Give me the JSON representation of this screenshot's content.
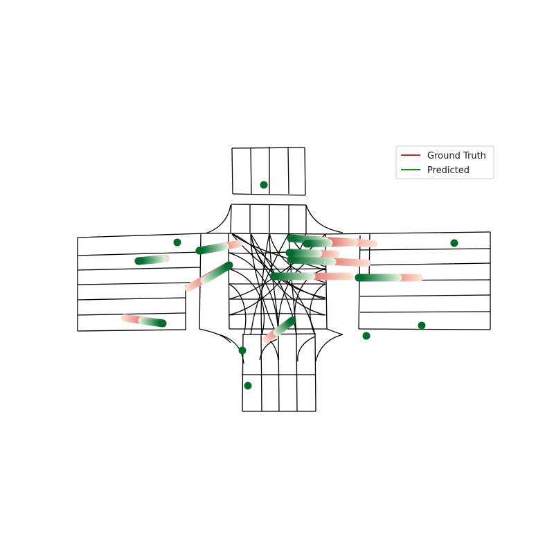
{
  "legend": {
    "items": [
      {
        "label": "Ground Truth",
        "color": "#e31a1c"
      },
      {
        "label": "Predicted",
        "color": "#1a8a1a"
      }
    ]
  },
  "colors": {
    "lane_lines": "#000000",
    "predicted_head": "#006d2c",
    "predicted_tail": "#e5f5e0",
    "ground_truth_head": "#cb181d",
    "ground_truth_tail": "#fee0d2"
  },
  "agents": [
    {
      "id": "agent-1",
      "gt": [
        [
          200,
          377
        ],
        [
          240,
          373
        ]
      ],
      "pred": [
        [
          200,
          377
        ],
        [
          235,
          374
        ]
      ]
    },
    {
      "id": "agent-2",
      "gt": [
        [
          288,
          362
        ],
        [
          345,
          352
        ]
      ],
      "pred": [
        [
          288,
          362
        ],
        [
          325,
          356
        ]
      ]
    },
    {
      "id": "agent-3",
      "gt": [
        [
          331,
          383
        ],
        [
          272,
          416
        ]
      ],
      "pred": [
        [
          331,
          383
        ],
        [
          295,
          405
        ]
      ]
    },
    {
      "id": "agent-4",
      "gt": [
        [
          420,
          344
        ],
        [
          540,
          352
        ]
      ],
      "pred": [
        [
          420,
          344
        ],
        [
          470,
          348
        ]
      ]
    },
    {
      "id": "agent-5",
      "gt": [
        [
          443,
          352
        ],
        [
          512,
          350
        ]
      ],
      "pred": [
        [
          443,
          352
        ],
        [
          475,
          351
        ]
      ]
    },
    {
      "id": "agent-6",
      "gt": [
        [
          420,
          375
        ],
        [
          530,
          380
        ]
      ],
      "pred": [
        [
          420,
          375
        ],
        [
          480,
          378
        ]
      ]
    },
    {
      "id": "agent-7",
      "gt": [
        [
          418,
          365
        ],
        [
          485,
          367
        ]
      ],
      "pred": [
        [
          418,
          365
        ],
        [
          460,
          366
        ]
      ]
    },
    {
      "id": "agent-8",
      "gt": [
        [
          395,
          399
        ],
        [
          505,
          399
        ]
      ],
      "pred": [
        [
          395,
          399
        ],
        [
          450,
          399
        ]
      ]
    },
    {
      "id": "agent-9",
      "gt": [
        [
          518,
          401
        ],
        [
          605,
          401
        ]
      ],
      "pred": [
        [
          518,
          401
        ],
        [
          575,
          401
        ]
      ]
    },
    {
      "id": "agent-10",
      "gt": [
        [
          235,
          467
        ],
        [
          180,
          459
        ]
      ],
      "pred": [
        [
          235,
          467
        ],
        [
          205,
          463
        ]
      ]
    },
    {
      "id": "agent-11",
      "gt": [
        [
          422,
          463
        ],
        [
          385,
          490
        ]
      ],
      "pred": [
        [
          422,
          463
        ],
        [
          400,
          480
        ]
      ]
    }
  ],
  "static_agents": [
    {
      "id": "static-1",
      "pos": [
        381,
        267
      ]
    },
    {
      "id": "static-2",
      "pos": [
        256,
        350
      ]
    },
    {
      "id": "static-3",
      "pos": [
        656,
        351
      ]
    },
    {
      "id": "static-4",
      "pos": [
        609,
        470
      ]
    },
    {
      "id": "static-5",
      "pos": [
        529,
        485
      ]
    },
    {
      "id": "static-6",
      "pos": [
        350,
        506
      ]
    },
    {
      "id": "static-7",
      "pos": [
        358,
        557
      ]
    }
  ]
}
